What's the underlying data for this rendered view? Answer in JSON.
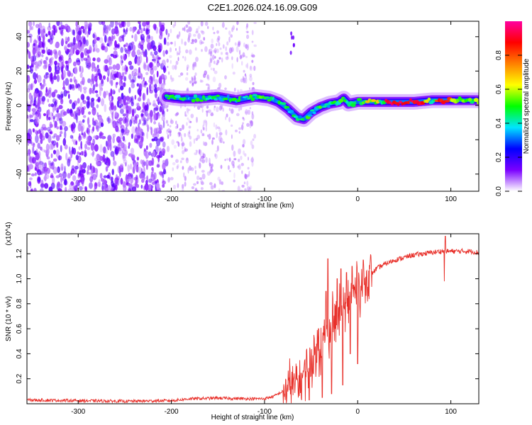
{
  "title": "C2E1.2026.024.16.09.G09",
  "chart_data": [
    {
      "type": "heatmap",
      "xlabel": "Height of straight line (km)",
      "ylabel": "Frequency (Hz)",
      "xlim": [
        -355,
        130
      ],
      "ylim": [
        -50,
        49
      ],
      "xticks": [
        "-300",
        "-200",
        "-100",
        "0",
        "100"
      ],
      "xtick_values": [
        -300,
        -200,
        -100,
        0,
        100
      ],
      "yticks": [
        "-40",
        "-20",
        "0",
        "20",
        "40"
      ],
      "ytick_values": [
        -40,
        -20,
        0,
        20,
        40
      ],
      "colorbar": {
        "label": "Normalized spectral amplitude",
        "range": [
          0,
          1
        ],
        "ticks": [
          "0.0",
          "0.2",
          "0.4",
          "0.6",
          "0.8"
        ],
        "tick_values": [
          0.0,
          0.2,
          0.4,
          0.6,
          0.8
        ],
        "colors": [
          "#ffffff",
          "#7b00ff",
          "#0000ff",
          "#00e5ff",
          "#00ff00",
          "#ffff00",
          "#ff8000",
          "#ff0000",
          "#ff00a0"
        ]
      },
      "ridge": {
        "x": [
          -205,
          -190,
          -170,
          -150,
          -130,
          -110,
          -95,
          -85,
          -75,
          -65,
          -58,
          -50,
          -40,
          -30,
          -20,
          -15,
          -10,
          0,
          20,
          40,
          60,
          80,
          100,
          130
        ],
        "y": [
          5,
          4,
          4,
          5,
          3,
          5,
          4,
          2,
          -2,
          -7,
          -8,
          -4,
          -1,
          1,
          2,
          4,
          1,
          2,
          2,
          2,
          2,
          3,
          3,
          3
        ]
      },
      "noise_region_x": [
        -355,
        -205
      ],
      "faint_band_x": [
        -205,
        -110
      ],
      "weak_streak": {
        "x": [
          -72,
          -68
        ],
        "y": [
          28,
          45
        ]
      }
    },
    {
      "type": "line",
      "xlabel": "Height of straight line (km)",
      "ylabel": "SNR (10 * v/v)",
      "y_multiplier_label": "(x10^4)",
      "xlim": [
        -355,
        130
      ],
      "ylim": [
        0,
        1.36
      ],
      "xticks": [
        "-300",
        "-200",
        "-100",
        "0",
        "100"
      ],
      "xtick_values": [
        -300,
        -200,
        -100,
        0,
        100
      ],
      "yticks": [
        "0.2",
        "0.4",
        "0.6",
        "0.8",
        "1.0",
        "1.2"
      ],
      "ytick_values": [
        0.2,
        0.4,
        0.6,
        0.8,
        1.0,
        1.2
      ],
      "color": "#e8302a",
      "envelope": {
        "x": [
          -355,
          -300,
          -250,
          -200,
          -180,
          -150,
          -120,
          -100,
          -90,
          -80,
          -70,
          -60,
          -50,
          -40,
          -30,
          -25,
          -20,
          -15,
          -10,
          -5,
          0,
          5,
          10,
          20,
          30,
          40,
          50,
          60,
          70,
          80,
          90,
          95,
          100,
          110,
          120,
          130
        ],
        "y": [
          0.03,
          0.025,
          0.02,
          0.025,
          0.04,
          0.045,
          0.04,
          0.04,
          0.06,
          0.1,
          0.15,
          0.2,
          0.35,
          0.45,
          0.6,
          0.65,
          0.72,
          0.75,
          0.8,
          0.88,
          0.9,
          0.95,
          1.0,
          1.08,
          1.12,
          1.15,
          1.17,
          1.19,
          1.2,
          1.21,
          1.22,
          1.22,
          1.22,
          1.22,
          1.22,
          1.21
        ]
      },
      "spikes": [
        {
          "x": -47,
          "y": 0.55
        },
        {
          "x": -42,
          "y": 0.6
        },
        {
          "x": -34,
          "y": 0.9
        },
        {
          "x": -32,
          "y": 1.16
        },
        {
          "x": -27,
          "y": 0.9
        },
        {
          "x": -22,
          "y": 1.0
        },
        {
          "x": -18,
          "y": 1.08
        },
        {
          "x": -12,
          "y": 1.05
        },
        {
          "x": -6,
          "y": 1.1
        },
        {
          "x": 1,
          "y": 1.05
        },
        {
          "x": 6,
          "y": 1.15
        },
        {
          "x": 94,
          "y": 1.34
        }
      ],
      "dips": [
        {
          "x": -52,
          "y": 0.03
        },
        {
          "x": -38,
          "y": 0.05
        },
        {
          "x": -28,
          "y": 0.08
        },
        {
          "x": -16,
          "y": 0.15
        },
        {
          "x": -8,
          "y": 0.4
        },
        {
          "x": 0,
          "y": 0.32
        },
        {
          "x": 93,
          "y": 0.98
        }
      ]
    }
  ]
}
